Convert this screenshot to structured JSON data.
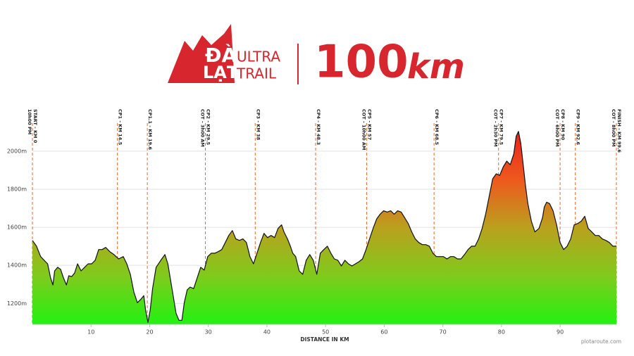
{
  "header": {
    "logo_top": "ĐÀ",
    "logo_bottom": "LẠT",
    "logo_word1": "ULTRA",
    "logo_word2": "TRAIL",
    "distance": "100",
    "unit": "km"
  },
  "chart_data": {
    "type": "area",
    "x_label": "DISTANCE IN KM",
    "credit": "plotaroute.com",
    "xlim": [
      0,
      99.6
    ],
    "ylim": [
      1090,
      2240
    ],
    "xticks": [
      10,
      20,
      30,
      40,
      50,
      60,
      70,
      80,
      90
    ],
    "yticks": [
      {
        "value": 1200,
        "label": "1200m"
      },
      {
        "value": 1400,
        "label": "1400m"
      },
      {
        "value": 1600,
        "label": "1600m"
      },
      {
        "value": 1800,
        "label": "1800m"
      },
      {
        "value": 2000,
        "label": "2000m"
      }
    ],
    "grid": true,
    "line_color": "#111111",
    "marker_color": "#f26522",
    "gradient": [
      "#e8221c",
      "#ee5a1e",
      "#b9a11e",
      "#7fcb1c",
      "#22f212"
    ],
    "x": [
      0,
      0.7,
      1.4,
      2.0,
      2.6,
      3.1,
      3.5,
      3.8,
      4.3,
      4.8,
      5.3,
      5.8,
      6.2,
      6.7,
      7.2,
      7.7,
      8.3,
      8.9,
      9.5,
      10.1,
      10.7,
      11.3,
      11.9,
      12.5,
      13.2,
      13.9,
      14.7,
      15.5,
      16.1,
      16.7,
      17.3,
      17.9,
      18.5,
      19.0,
      19.3,
      19.7,
      20.1,
      20.5,
      21.1,
      21.9,
      22.6,
      23.1,
      23.5,
      24.0,
      24.5,
      25.0,
      25.5,
      25.9,
      26.4,
      26.9,
      27.5,
      28.1,
      28.7,
      29.3,
      29.9,
      30.5,
      31.1,
      31.7,
      32.3,
      32.9,
      33.5,
      34.1,
      34.7,
      35.3,
      35.9,
      36.5,
      37.1,
      37.7,
      38.3,
      38.9,
      39.5,
      40.1,
      40.7,
      41.3,
      41.9,
      42.5,
      42.9,
      43.5,
      44.0,
      44.4,
      44.9,
      45.5,
      46.1,
      46.7,
      47.3,
      47.9,
      48.5,
      49.1,
      49.7,
      50.3,
      50.9,
      51.5,
      52.1,
      52.7,
      53.3,
      53.9,
      54.5,
      55.1,
      55.7,
      56.3,
      56.9,
      57.5,
      58.1,
      58.7,
      59.3,
      59.9,
      60.5,
      61.1,
      61.7,
      62.3,
      62.9,
      63.5,
      64.1,
      64.7,
      65.3,
      65.9,
      66.5,
      67.1,
      67.7,
      68.3,
      68.9,
      69.5,
      70.1,
      70.7,
      71.3,
      71.9,
      72.5,
      73.1,
      73.7,
      74.3,
      74.9,
      75.5,
      76.1,
      76.7,
      77.3,
      77.9,
      78.5,
      79.1,
      79.7,
      80.3,
      80.9,
      81.5,
      82.1,
      82.5,
      82.9,
      83.3,
      83.7,
      84.1,
      84.5,
      85.1,
      85.7,
      86.4,
      87.0,
      87.3,
      87.7,
      88.2,
      88.8,
      89.4,
      90.0,
      90.6,
      91.2,
      91.8,
      92.4,
      93.0,
      93.6,
      94.2,
      94.8,
      95.4,
      96.0,
      96.6,
      97.2,
      97.8,
      98.4,
      99.0,
      99.6
    ],
    "values": [
      1531,
      1501,
      1446,
      1427,
      1408,
      1334,
      1297,
      1371,
      1390,
      1379,
      1334,
      1297,
      1345,
      1341,
      1360,
      1408,
      1371,
      1390,
      1408,
      1408,
      1427,
      1483,
      1483,
      1494,
      1472,
      1457,
      1434,
      1446,
      1408,
      1353,
      1260,
      1204,
      1222,
      1241,
      1167,
      1100,
      1167,
      1278,
      1390,
      1427,
      1457,
      1408,
      1334,
      1241,
      1148,
      1111,
      1111,
      1204,
      1271,
      1286,
      1278,
      1334,
      1390,
      1375,
      1446,
      1464,
      1464,
      1472,
      1483,
      1520,
      1557,
      1583,
      1539,
      1531,
      1539,
      1520,
      1446,
      1408,
      1464,
      1520,
      1568,
      1546,
      1557,
      1546,
      1594,
      1613,
      1576,
      1539,
      1501,
      1464,
      1446,
      1371,
      1353,
      1427,
      1457,
      1427,
      1353,
      1464,
      1483,
      1501,
      1464,
      1434,
      1427,
      1397,
      1427,
      1408,
      1397,
      1408,
      1419,
      1434,
      1483,
      1539,
      1594,
      1643,
      1669,
      1687,
      1680,
      1687,
      1669,
      1687,
      1680,
      1650,
      1620,
      1576,
      1539,
      1520,
      1509,
      1509,
      1501,
      1464,
      1446,
      1446,
      1446,
      1434,
      1446,
      1446,
      1434,
      1434,
      1457,
      1483,
      1501,
      1501,
      1539,
      1594,
      1669,
      1762,
      1855,
      1881,
      1873,
      1918,
      1948,
      1929,
      1985,
      2078,
      2104,
      2041,
      1929,
      1818,
      1725,
      1632,
      1576,
      1594,
      1650,
      1706,
      1732,
      1725,
      1687,
      1613,
      1520,
      1483,
      1501,
      1539,
      1613,
      1620,
      1632,
      1658,
      1594,
      1576,
      1557,
      1557,
      1539,
      1531,
      1520,
      1501,
      1501
    ],
    "checkpoints": [
      {
        "label": [
          "START - KM 0",
          "10h00 PM"
        ],
        "km": 0
      },
      {
        "label": [
          "CP1 - KM 14.5"
        ],
        "km": 14.5
      },
      {
        "label": [
          "CP1.1 - KM 19.6"
        ],
        "km": 19.6
      },
      {
        "label": [
          "CP2 - KM 29.5",
          "COT - 3h00 AM"
        ],
        "km": 29.5
      },
      {
        "label": [
          "CP3 - KM 38"
        ],
        "km": 38
      },
      {
        "label": [
          "CP4 - KM 48.3"
        ],
        "km": 48.3
      },
      {
        "label": [
          "CP5 - KM 57",
          "COT - 10h00 AM"
        ],
        "km": 57
      },
      {
        "label": [
          "CP6 - KM 68.5"
        ],
        "km": 68.5
      },
      {
        "label": [
          "CP7 - KM 79.5",
          "COT - 2h30 PM"
        ],
        "km": 79.5
      },
      {
        "label": [
          "CP8 - KM 90",
          "COT - 6h00 PM"
        ],
        "km": 90
      },
      {
        "label": [
          "CP9 - KM 92.6"
        ],
        "km": 92.6
      },
      {
        "label": [
          "FINISH - KM 99.6",
          "COT - 8h00 PM"
        ],
        "km": 99.6
      }
    ]
  }
}
